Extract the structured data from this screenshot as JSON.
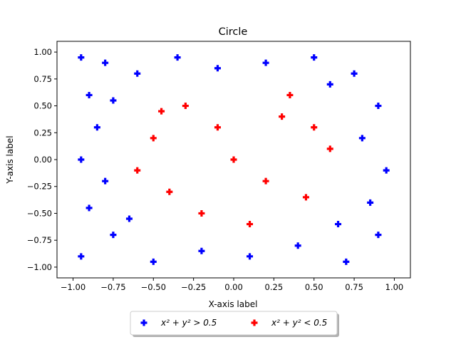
{
  "chart_data": {
    "type": "scatter",
    "title": "Circle",
    "xlabel": "X-axis label",
    "ylabel": "Y-axis label",
    "xlim": [
      -1.1,
      1.1
    ],
    "ylim": [
      -1.1,
      1.1
    ],
    "x_ticks": [
      -1.0,
      -0.75,
      -0.5,
      -0.25,
      0.0,
      0.25,
      0.5,
      0.75,
      1.0
    ],
    "y_ticks": [
      -1.0,
      -0.75,
      -0.5,
      -0.25,
      0.0,
      0.25,
      0.5,
      0.75,
      1.0
    ],
    "x_tick_labels": [
      "−1.00",
      "−0.75",
      "−0.50",
      "−0.25",
      "0.00",
      "0.25",
      "0.50",
      "0.75",
      "1.00"
    ],
    "y_tick_labels": [
      "−1.00",
      "−0.75",
      "−0.50",
      "−0.25",
      "0.00",
      "0.25",
      "0.50",
      "0.75",
      "1.00"
    ],
    "grid": false,
    "legend_position": "below-center",
    "marker": "plus",
    "series": [
      {
        "name": "x² + y² > 0.5",
        "color": "#0000ff",
        "points": [
          [
            -0.95,
            0.95
          ],
          [
            -0.8,
            0.9
          ],
          [
            -0.6,
            0.8
          ],
          [
            -0.9,
            0.6
          ],
          [
            -0.75,
            0.55
          ],
          [
            -0.85,
            0.3
          ],
          [
            -0.95,
            0.0
          ],
          [
            -0.8,
            -0.2
          ],
          [
            -0.9,
            -0.45
          ],
          [
            -0.75,
            -0.7
          ],
          [
            -0.95,
            -0.9
          ],
          [
            -0.5,
            -0.95
          ],
          [
            -0.2,
            -0.85
          ],
          [
            0.1,
            -0.9
          ],
          [
            0.4,
            -0.8
          ],
          [
            0.7,
            -0.95
          ],
          [
            0.9,
            -0.7
          ],
          [
            0.85,
            -0.4
          ],
          [
            0.95,
            -0.1
          ],
          [
            0.8,
            0.2
          ],
          [
            0.9,
            0.5
          ],
          [
            0.75,
            0.8
          ],
          [
            0.5,
            0.95
          ],
          [
            0.2,
            0.9
          ],
          [
            -0.1,
            0.85
          ],
          [
            -0.35,
            0.95
          ],
          [
            0.6,
            0.7
          ],
          [
            -0.65,
            -0.55
          ],
          [
            0.65,
            -0.6
          ]
        ]
      },
      {
        "name": "x² + y² < 0.5",
        "color": "#ff0000",
        "points": [
          [
            0.0,
            0.0
          ],
          [
            0.3,
            0.4
          ],
          [
            -0.3,
            0.5
          ],
          [
            -0.5,
            0.2
          ],
          [
            -0.4,
            -0.3
          ],
          [
            0.1,
            -0.6
          ],
          [
            0.45,
            -0.35
          ],
          [
            0.6,
            0.1
          ],
          [
            -0.1,
            0.3
          ],
          [
            0.2,
            -0.2
          ],
          [
            -0.6,
            -0.1
          ],
          [
            0.35,
            0.6
          ],
          [
            -0.2,
            -0.5
          ],
          [
            0.5,
            0.3
          ],
          [
            -0.45,
            0.45
          ]
        ]
      }
    ]
  }
}
